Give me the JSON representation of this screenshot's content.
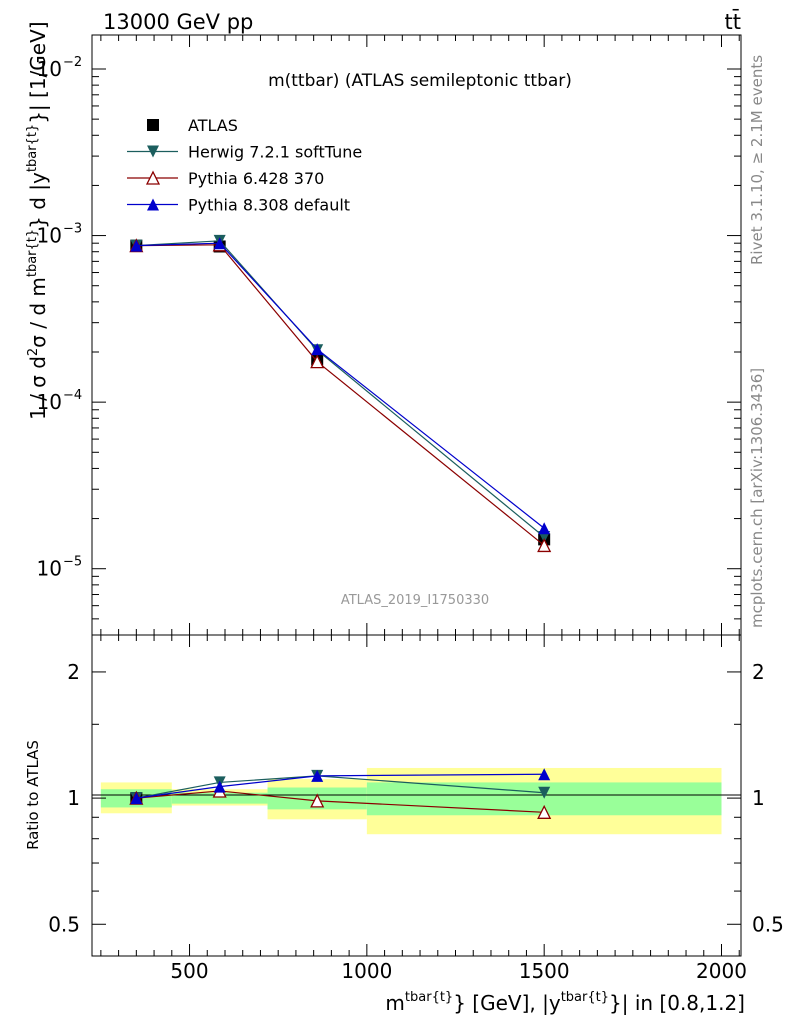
{
  "header": {
    "left": "13000 GeV pp",
    "right": "tt̄"
  },
  "side_labels": {
    "rivet": "Rivet 3.1.10, ≥ 2.1M events",
    "mcplots": "mcplots.cern.ch [arXiv:1306.3436]"
  },
  "chart_data": [
    {
      "type": "line",
      "title": "m(ttbar) (ATLAS semileptonic ttbar)",
      "watermark": "ATLAS_2019_I1750330",
      "ylabel": "1 / σ d²σ / d m^{tbar{t}} d |y^{tbar{t}}| [1/GeV]",
      "y_scale": "log",
      "xlim": [
        225,
        2055
      ],
      "ylim": [
        4e-06,
        0.016
      ],
      "y_ticks": [
        {
          "value": 1e-05,
          "base": "10",
          "exp": "−5"
        },
        {
          "value": 0.0001,
          "base": "10",
          "exp": "−4"
        },
        {
          "value": 0.001,
          "base": "10",
          "exp": "−3"
        },
        {
          "value": 0.01,
          "base": "10",
          "exp": "−2"
        }
      ],
      "legend_position": "top-left",
      "series": [
        {
          "name": "ATLAS",
          "marker": "square",
          "color": "#000000",
          "x": [
            350,
            585,
            860,
            1500
          ],
          "y": [
            0.00087,
            0.00086,
            0.00018,
            1.5e-05
          ]
        },
        {
          "name": "Herwig 7.2.1 softTune",
          "marker": "triangle-down",
          "color": "#1b5e5e",
          "x": [
            350,
            585,
            860,
            1500
          ],
          "y": [
            0.00087,
            0.00093,
            0.000205,
            1.55e-05
          ]
        },
        {
          "name": "Pythia 6.428 370",
          "marker": "triangle-up-open",
          "color": "#8b0000",
          "x": [
            350,
            585,
            860,
            1500
          ],
          "y": [
            0.00087,
            0.00088,
            0.000175,
            1.38e-05
          ]
        },
        {
          "name": "Pythia 8.308 default",
          "marker": "triangle-up",
          "color": "#0000cc",
          "x": [
            350,
            585,
            860,
            1500
          ],
          "y": [
            0.00087,
            0.0009,
            0.000208,
            1.75e-05
          ]
        }
      ]
    },
    {
      "type": "line",
      "ylabel": "Ratio to ATLAS",
      "xlabel": "m^{tbar{t}} [GeV], |y^{tbar{t}}| in [0.8,1.2]",
      "y_scale": "log",
      "xlim": [
        225,
        2055
      ],
      "ylim": [
        0.42,
        2.45
      ],
      "x_ticks": [
        500,
        1000,
        1500,
        2000
      ],
      "y_ticks": [
        0.5,
        1,
        2
      ],
      "bands": [
        {
          "x_low": 250,
          "x_high": 450,
          "inner": [
            0.95,
            1.05
          ],
          "outer": [
            0.92,
            1.09
          ]
        },
        {
          "x_low": 450,
          "x_high": 720,
          "inner": [
            0.97,
            1.03
          ],
          "outer": [
            0.96,
            1.05
          ]
        },
        {
          "x_low": 720,
          "x_high": 1000,
          "inner": [
            0.94,
            1.06
          ],
          "outer": [
            0.89,
            1.11
          ]
        },
        {
          "x_low": 1000,
          "x_high": 2000,
          "inner": [
            0.91,
            1.09
          ],
          "outer": [
            0.82,
            1.18
          ]
        }
      ],
      "series": [
        {
          "name": "Herwig 7.2.1 softTune",
          "marker": "triangle-down",
          "color": "#1b5e5e",
          "x": [
            350,
            585,
            860,
            1500
          ],
          "y": [
            1.0,
            1.09,
            1.13,
            1.03
          ]
        },
        {
          "name": "Pythia 6.428 370",
          "marker": "triangle-up-open",
          "color": "#8b0000",
          "x": [
            350,
            585,
            860,
            1500
          ],
          "y": [
            1.0,
            1.04,
            0.985,
            0.925
          ]
        },
        {
          "name": "Pythia 8.308 default",
          "marker": "triangle-up",
          "color": "#0000cc",
          "x": [
            350,
            585,
            860,
            1500
          ],
          "y": [
            1.0,
            1.065,
            1.13,
            1.14
          ]
        }
      ]
    }
  ],
  "colors": {
    "band_inner": "#99ff99",
    "band_outer": "#ffff99"
  }
}
